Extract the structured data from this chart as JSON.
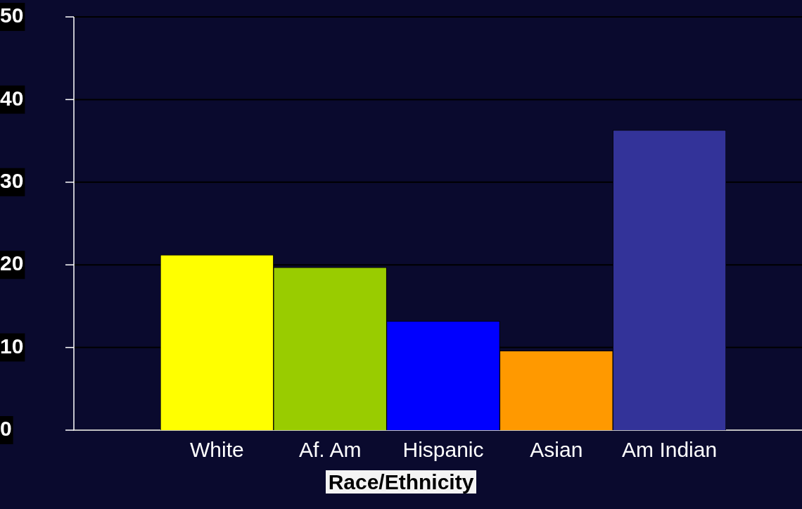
{
  "chart_data": {
    "type": "bar",
    "xlabel": "Race/Ethnicity",
    "categories": [
      "White",
      "Af. Am",
      "Hispanic",
      "Asian",
      "Am Indian"
    ],
    "values": [
      21.2,
      19.7,
      13.2,
      9.6,
      36.3
    ],
    "colors": [
      "#ffff00",
      "#99cc00",
      "#0000ff",
      "#ff9900",
      "#333399"
    ],
    "ylim": [
      0,
      50
    ],
    "yticks": [
      0,
      10,
      20,
      30,
      40,
      50
    ],
    "grid": "y",
    "legend": false
  }
}
